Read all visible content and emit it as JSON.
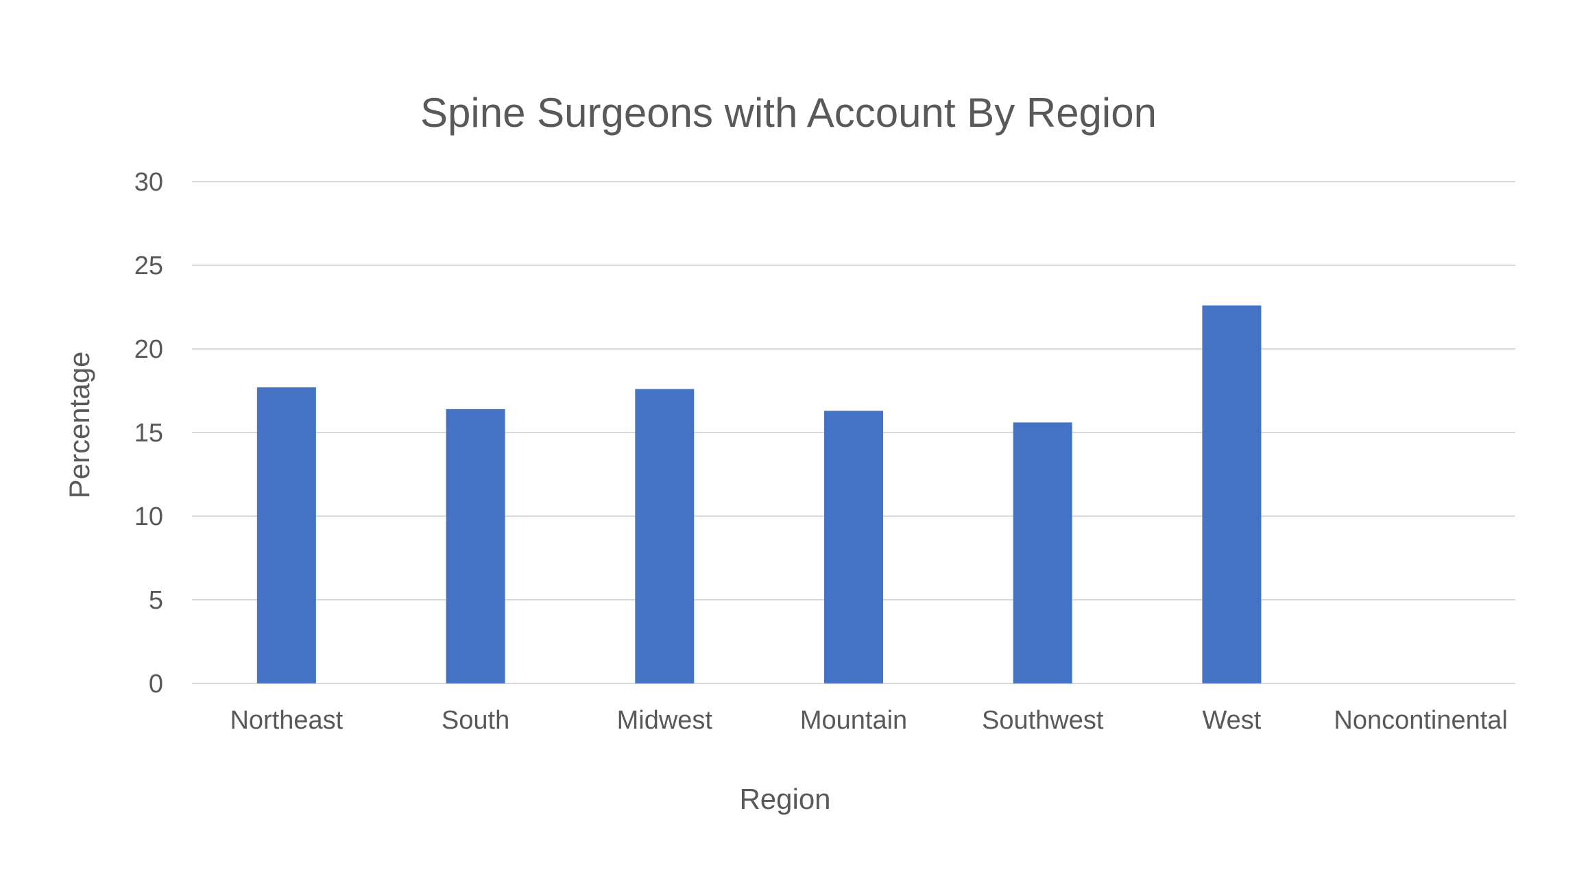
{
  "chart_data": {
    "type": "bar",
    "title": "Spine Surgeons with Account By Region",
    "xlabel": "Region",
    "ylabel": "Percentage",
    "categories": [
      "Northeast",
      "South",
      "Midwest",
      "Mountain",
      "Southwest",
      "West",
      "Noncontinental"
    ],
    "values": [
      17.7,
      16.4,
      17.6,
      16.3,
      15.6,
      22.6,
      0
    ],
    "ylim": [
      0,
      30
    ],
    "yticks": [
      "0",
      "5",
      "10",
      "15",
      "20",
      "25",
      "30"
    ],
    "grid": true,
    "legend": "none",
    "bar_color": "#4472c4"
  }
}
